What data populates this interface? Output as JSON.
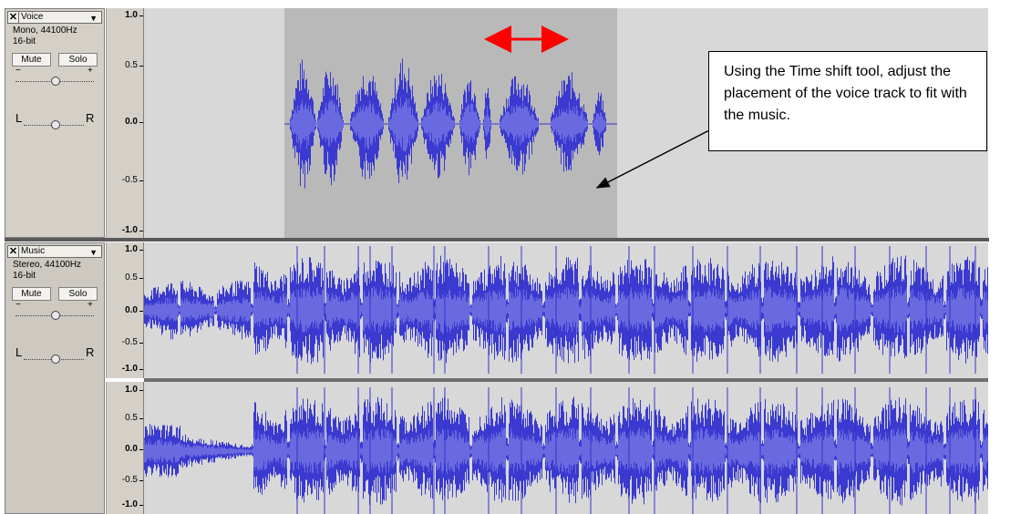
{
  "voice_track": {
    "name": "Voice",
    "close": "✕",
    "dropdown": "▼",
    "format": "Mono, 44100Hz",
    "bitdepth": "16-bit",
    "mute": "Mute",
    "solo": "Solo",
    "gain_minus": "−",
    "gain_plus": "+",
    "pan_left": "L",
    "pan_right": "R",
    "scale": [
      "1.0",
      "0.5",
      "0.0",
      "-0.5",
      "-1.0"
    ]
  },
  "music_track": {
    "name": "Music",
    "close": "✕",
    "dropdown": "▼",
    "format": "Stereo, 44100Hz",
    "bitdepth": "16-bit",
    "mute": "Mute",
    "solo": "Solo",
    "gain_minus": "−",
    "gain_plus": "+",
    "pan_left": "L",
    "pan_right": "R",
    "scale": [
      "1.0",
      "0.5",
      "0.0",
      "-0.5",
      "-1.0"
    ]
  },
  "callout": {
    "text": "Using the Time shift tool, adjust the placement of the voice track to fit with the music."
  },
  "colors": {
    "waveform": "#3333cc",
    "waveform_light": "#6666dd",
    "selection": "#b9b9b9",
    "track_bg": "#d8d8d8",
    "shift_arrow": "#ff0000"
  }
}
